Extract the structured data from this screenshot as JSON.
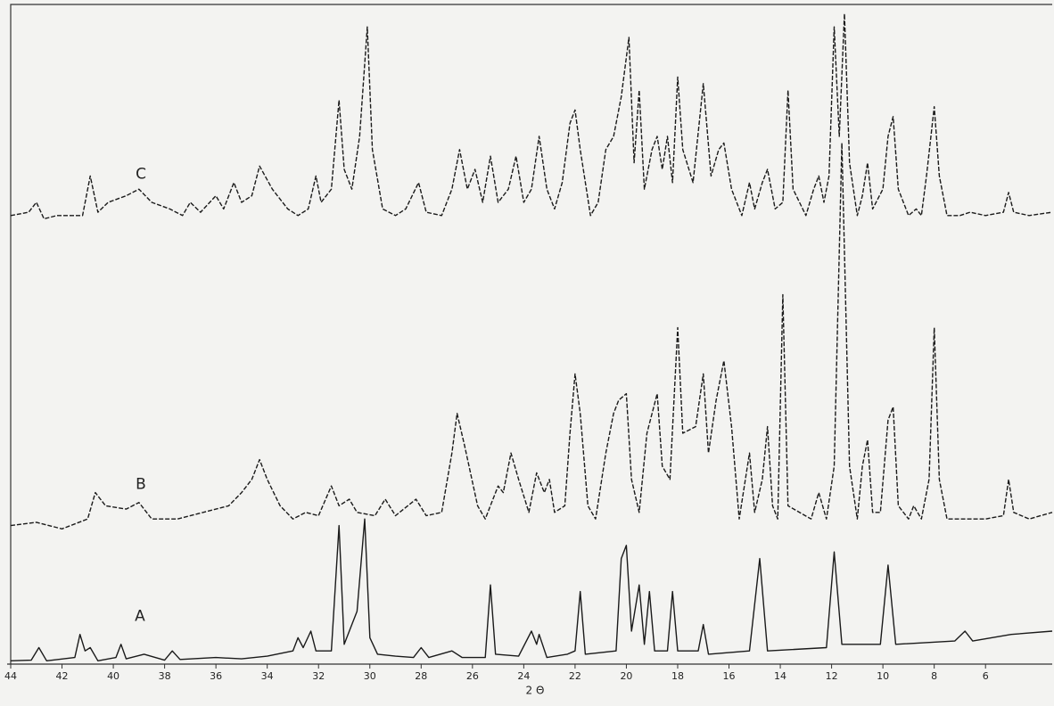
{
  "chart_data": {
    "type": "line",
    "x_label": "2 Θ",
    "xlim": [
      44,
      3.4
    ],
    "ylim": [
      0,
      100
    ],
    "xticks": [
      44,
      42,
      40,
      38,
      36,
      34,
      32,
      30,
      28,
      26,
      24,
      22,
      20,
      18,
      16,
      14,
      12,
      10,
      8,
      6
    ],
    "series": [
      {
        "name": "A",
        "color": "#1a1a1a",
        "linestyle": "solid",
        "x": [
          44,
          43.2,
          42.9,
          42.6,
          41.5,
          41.3,
          41.1,
          40.9,
          40.6,
          39.9,
          39.7,
          39.5,
          38.8,
          38,
          37.7,
          37.4,
          36,
          35,
          34,
          33,
          32.8,
          32.6,
          32.3,
          32.1,
          31.5,
          31.2,
          31.0,
          30.7,
          30.5,
          30.2,
          30.0,
          29.7,
          29,
          28.3,
          28,
          27.7,
          26.8,
          26.4,
          25.5,
          25.3,
          25.1,
          24.2,
          23.7,
          23.5,
          23.4,
          23.1,
          22.3,
          22,
          21.8,
          21.6,
          20.4,
          20.2,
          20,
          19.8,
          19.5,
          19.3,
          19.1,
          18.9,
          18.4,
          18.2,
          18.0,
          17.2,
          17.0,
          16.8,
          15.2,
          14.8,
          14.5,
          12.2,
          11.9,
          11.6,
          10.1,
          9.8,
          9.5,
          7.2,
          6.8,
          6.5,
          5,
          3.4
        ],
        "values": [
          0.5,
          0.6,
          2.5,
          0.5,
          1,
          4.5,
          2,
          2.5,
          0.5,
          1,
          3,
          0.8,
          1.5,
          0.6,
          2,
          0.7,
          1,
          0.8,
          1.2,
          2,
          4,
          2.5,
          5,
          2,
          2,
          21,
          3,
          6,
          8,
          22,
          4,
          1.5,
          1.2,
          1,
          2.5,
          1,
          2,
          1,
          1,
          12,
          1.5,
          1.2,
          5,
          3,
          4.5,
          1,
          1.5,
          2,
          11,
          1.5,
          2,
          16,
          18,
          5,
          12,
          3,
          11,
          2,
          2,
          11,
          2,
          2,
          6,
          1.5,
          2,
          16,
          2,
          2.5,
          17,
          3,
          3,
          15,
          3,
          3.5,
          5,
          3.5,
          4.5,
          5
        ]
      },
      {
        "name": "B",
        "color": "#1a1a1a",
        "linestyle": "dashed",
        "x": [
          44,
          43,
          42,
          41,
          40.7,
          40.3,
          39.5,
          39,
          38.5,
          37.5,
          36.5,
          35.5,
          35,
          34.6,
          34.3,
          34,
          33.5,
          33,
          32.5,
          32,
          31.5,
          31.2,
          30.8,
          30.5,
          29.8,
          29.4,
          29,
          28.2,
          27.8,
          27.2,
          26.8,
          26.6,
          26.3,
          25.8,
          25.5,
          25,
          24.8,
          24.5,
          24.2,
          23.8,
          23.5,
          23.2,
          23,
          22.8,
          22.4,
          22.2,
          22.0,
          21.8,
          21.5,
          21.2,
          20.8,
          20.5,
          20.3,
          20,
          19.8,
          19.5,
          19.2,
          18.8,
          18.6,
          18.3,
          18.0,
          17.8,
          17.3,
          17.0,
          16.8,
          16.5,
          16.2,
          15.9,
          15.6,
          15.2,
          15.0,
          14.7,
          14.5,
          14.3,
          14.1,
          13.9,
          13.7,
          12.8,
          12.5,
          12.2,
          11.9,
          11.6,
          11.3,
          11.0,
          10.8,
          10.6,
          10.4,
          10.1,
          9.8,
          9.6,
          9.4,
          9.0,
          8.8,
          8.5,
          8.2,
          8.0,
          7.8,
          7.5,
          6,
          5.3,
          5.1,
          4.9,
          4.3,
          3.4
        ],
        "values": [
          21,
          21.5,
          20.5,
          22,
          26,
          24,
          23.5,
          24.5,
          22,
          22,
          23,
          24,
          26,
          28,
          31,
          28,
          24,
          22,
          23,
          22.5,
          27,
          24,
          25,
          23,
          22.5,
          25,
          22.5,
          25,
          22.5,
          23,
          32,
          38,
          33,
          24,
          22,
          27,
          26,
          32,
          28,
          23,
          29,
          26,
          28,
          23,
          24,
          35,
          44,
          38,
          24,
          22,
          32,
          38,
          40,
          41,
          28,
          23,
          35,
          41,
          30,
          28,
          51,
          35,
          36,
          44,
          32,
          40,
          46,
          36,
          22,
          32,
          23,
          28,
          36,
          24,
          22,
          56,
          24,
          22,
          26,
          22,
          30,
          79,
          30,
          22,
          30,
          34,
          23,
          23,
          37,
          39,
          24,
          22,
          24,
          22,
          28,
          51,
          28,
          22,
          22,
          22.5,
          28,
          23,
          22,
          23
        ]
      },
      {
        "name": "C",
        "color": "#1a1a1a",
        "linestyle": "dashed",
        "x": [
          44,
          43.3,
          43,
          42.7,
          42.2,
          41.2,
          40.9,
          40.6,
          40.2,
          39.5,
          39,
          38.5,
          37.8,
          37.3,
          37,
          36.6,
          36,
          35.7,
          35.3,
          35,
          34.6,
          34.3,
          33.8,
          33.2,
          32.8,
          32.4,
          32.1,
          31.9,
          31.5,
          31.2,
          31,
          30.7,
          30.4,
          30.1,
          29.9,
          29.5,
          29,
          28.6,
          28.1,
          27.8,
          27.2,
          26.8,
          26.5,
          26.2,
          25.9,
          25.6,
          25.3,
          25,
          24.6,
          24.3,
          24,
          23.7,
          23.4,
          23.1,
          22.8,
          22.5,
          22.2,
          22,
          21.8,
          21.4,
          21.1,
          20.8,
          20.5,
          20.2,
          19.9,
          19.7,
          19.5,
          19.3,
          19,
          18.8,
          18.6,
          18.4,
          18.2,
          18.0,
          17.8,
          17.4,
          17.0,
          16.7,
          16.4,
          16.2,
          15.9,
          15.5,
          15.2,
          15,
          14.7,
          14.5,
          14.2,
          13.9,
          13.7,
          13.5,
          13.0,
          12.7,
          12.5,
          12.3,
          12.1,
          11.9,
          11.7,
          11.5,
          11.3,
          11.0,
          10.8,
          10.6,
          10.4,
          10.0,
          9.8,
          9.6,
          9.4,
          9.0,
          8.7,
          8.5,
          8.3,
          8.0,
          7.8,
          7.5,
          7.0,
          6.6,
          6,
          5.3,
          5.1,
          4.9,
          4.3,
          3.4
        ],
        "values": [
          68,
          68.5,
          70,
          67.5,
          68,
          68,
          74,
          68.5,
          70,
          71,
          72,
          70,
          69,
          68,
          70,
          68.5,
          71,
          69,
          73,
          70,
          71,
          75.5,
          72,
          69,
          68,
          69,
          74,
          70,
          72,
          85.5,
          75,
          72,
          80,
          96.6,
          78,
          69,
          68,
          69,
          73,
          68.5,
          68,
          72,
          78,
          72,
          75,
          70,
          77,
          70,
          72,
          77,
          70,
          72,
          80,
          72,
          69,
          73,
          82,
          84,
          78,
          68,
          70,
          78,
          80,
          86,
          95,
          76,
          87,
          72,
          78,
          80,
          75,
          80,
          73,
          89,
          78,
          73,
          88,
          74,
          78,
          79,
          72,
          68,
          73,
          69,
          73,
          75,
          69,
          70,
          87,
          72,
          68,
          72,
          74,
          70,
          74,
          96.6,
          80,
          98.6,
          76,
          68,
          71,
          76,
          69,
          72,
          80,
          83,
          72,
          68,
          69,
          68,
          74,
          84.5,
          74,
          68,
          68,
          68.5,
          68,
          68.5,
          71.5,
          68.5,
          68,
          68.5
        ]
      }
    ]
  }
}
